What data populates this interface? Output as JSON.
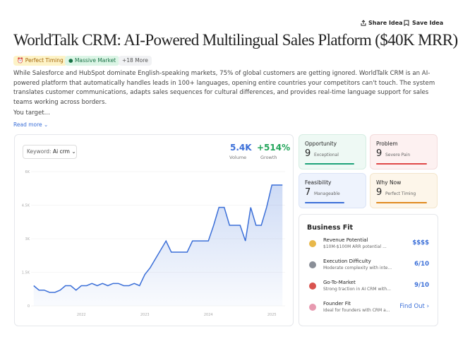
{
  "header": {
    "share": "Share Idea",
    "save": "Save Idea",
    "title": "WorldTalk CRM: AI-Powered Multilingual Sales Platform ($40K MRR)",
    "tags": [
      "Perfect Timing",
      "Massive Market",
      "+18 More"
    ]
  },
  "description": "While Salesforce and HubSpot dominate English-speaking markets, 75% of global customers are getting ignored. WorldTalk CRM is an AI-powered platform that automatically handles leads in 100+ languages, opening entire countries your competitors can't touch. The system translates customer communications, adapts sales sequences for cultural differences, and provides real-time language support for sales teams working across borders.",
  "teaser": "You target...",
  "read_more": "Read more",
  "trend": {
    "keyword_label": "Keyword:",
    "keyword": "Ai crm",
    "volume": "5.4K",
    "volume_label": "Volume",
    "growth": "+514%",
    "growth_label": "Growth",
    "chart_data": {
      "type": "line",
      "color": "#3b6fd8",
      "categories": [
        null,
        null,
        null,
        null,
        null,
        null,
        null,
        null,
        null,
        "2022",
        null,
        null,
        null,
        null,
        null,
        null,
        null,
        null,
        null,
        null,
        null,
        "2023",
        null,
        null,
        null,
        null,
        null,
        null,
        null,
        null,
        null,
        null,
        null,
        "2024",
        null,
        null,
        null,
        null,
        null,
        null,
        null,
        null,
        null,
        null,
        null,
        "2025",
        null,
        null
      ],
      "values": [
        900,
        700,
        700,
        600,
        600,
        700,
        900,
        900,
        700,
        900,
        900,
        1000,
        900,
        1000,
        900,
        1000,
        1000,
        900,
        900,
        1000,
        900,
        1400,
        1700,
        2100,
        2500,
        2900,
        2400,
        2400,
        2400,
        2400,
        2900,
        2900,
        2900,
        2900,
        3600,
        4400,
        4400,
        3600,
        3600,
        3600,
        2900,
        4400,
        3600,
        3600,
        4400,
        5400,
        5400,
        5400
      ],
      "ylim": [
        0,
        6000
      ],
      "yticks": [
        0,
        {
          "value": 1500,
          "label": "1.5K"
        },
        {
          "value": 3000,
          "label": "3K"
        },
        {
          "value": 4500,
          "label": "4.5K"
        },
        {
          "value": 6000,
          "label": "6K"
        }
      ],
      "grid": true
    }
  },
  "scores": [
    {
      "label": "Opportunity",
      "score": "9",
      "note": "Exceptional"
    },
    {
      "label": "Problem",
      "score": "9",
      "note": "Severe Pain"
    },
    {
      "label": "Feasibility",
      "score": "7",
      "note": "Manageable"
    },
    {
      "label": "Why Now",
      "score": "9",
      "note": "Perfect Timing"
    }
  ],
  "business_fit": {
    "title": "Business Fit",
    "rows": [
      {
        "title": "Revenue Potential",
        "desc": "$10M-$100M ARR potential ...",
        "value": "$$$$"
      },
      {
        "title": "Execution Difficulty",
        "desc": "Moderate complexity with inte...",
        "value": "6/10"
      },
      {
        "title": "Go-To-Market",
        "desc": "Strong traction in AI CRM with...",
        "value": "9/10"
      },
      {
        "title": "Founder Fit",
        "desc": "Ideal for founders with CRM a...",
        "value": "Find Out"
      }
    ]
  }
}
